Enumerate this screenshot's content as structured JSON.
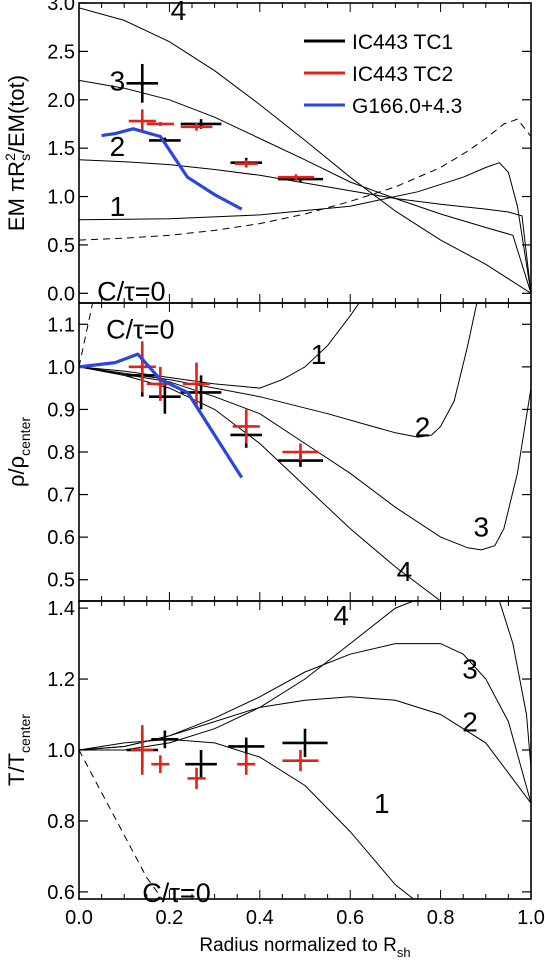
{
  "colors": {
    "IC443 TC1": "#000000",
    "IC443 TC2": "#e4201b",
    "G166.0+4.3": "#2747e0",
    "model": "#000000"
  },
  "xlabel": {
    "main": "Radius normalized to R",
    "sub": "sh"
  },
  "legend": [
    {
      "name": "IC443 TC1",
      "color": "#000000"
    },
    {
      "name": "IC443 TC2",
      "color": "#e4201b"
    },
    {
      "name": "G166.0+4.3",
      "color": "#2747e0"
    }
  ],
  "chart_data": [
    {
      "type": "line",
      "panel": "top",
      "ylabel": "EM πR_s^2/EM(tot)",
      "xlim": [
        0,
        1
      ],
      "ylim": [
        -0.1,
        3.0
      ],
      "xticks": [
        "0.0",
        "0.2",
        "0.4",
        "0.6",
        "0.8",
        "1.0"
      ],
      "yticks": [
        "0.0",
        "0.5",
        "1.0",
        "1.5",
        "2.0",
        "2.5",
        "3.0"
      ],
      "ctau_label": "C/τ=0",
      "curve_labels": [
        {
          "text": "4",
          "x": 0.22,
          "y": 2.93
        },
        {
          "text": "3",
          "x": 0.085,
          "y": 2.2
        },
        {
          "text": "2",
          "x": 0.085,
          "y": 1.52
        },
        {
          "text": "1",
          "x": 0.085,
          "y": 0.9
        }
      ],
      "model_curves": [
        {
          "label": "C/τ=0",
          "dashed": true,
          "x": [
            0,
            0.1,
            0.2,
            0.3,
            0.4,
            0.5,
            0.6,
            0.7,
            0.8,
            0.86,
            0.9,
            0.94,
            0.97,
            1.0
          ],
          "y": [
            0.55,
            0.57,
            0.6,
            0.65,
            0.72,
            0.82,
            0.95,
            1.1,
            1.3,
            1.47,
            1.6,
            1.75,
            1.8,
            1.62
          ]
        },
        {
          "label": "1",
          "dashed": false,
          "x": [
            0,
            0.2,
            0.4,
            0.6,
            0.75,
            0.85,
            0.9,
            0.93,
            0.95,
            0.97,
            0.99,
            1.0
          ],
          "y": [
            0.76,
            0.77,
            0.81,
            0.9,
            1.05,
            1.2,
            1.3,
            1.35,
            1.25,
            0.9,
            0.3,
            0.0
          ]
        },
        {
          "label": "2",
          "dashed": false,
          "x": [
            0,
            0.1,
            0.2,
            0.3,
            0.4,
            0.5,
            0.6,
            0.7,
            0.8,
            0.9,
            0.95,
            0.98,
            1.0
          ],
          "y": [
            1.38,
            1.36,
            1.33,
            1.28,
            1.22,
            1.14,
            1.06,
            0.98,
            0.92,
            0.87,
            0.84,
            0.8,
            0.0
          ]
        },
        {
          "label": "3",
          "dashed": false,
          "x": [
            0,
            0.1,
            0.2,
            0.3,
            0.4,
            0.5,
            0.6,
            0.7,
            0.8,
            0.9,
            0.96,
            1.0
          ],
          "y": [
            2.2,
            2.12,
            2.0,
            1.82,
            1.6,
            1.38,
            1.15,
            0.98,
            0.82,
            0.68,
            0.6,
            0.0
          ]
        },
        {
          "label": "4",
          "dashed": false,
          "x": [
            0,
            0.1,
            0.2,
            0.3,
            0.4,
            0.5,
            0.6,
            0.7,
            0.8,
            0.9,
            0.95,
            1.0
          ],
          "y": [
            2.95,
            2.82,
            2.6,
            2.3,
            1.95,
            1.58,
            1.2,
            0.85,
            0.55,
            0.3,
            0.15,
            0.0
          ]
        }
      ],
      "series": [
        {
          "name": "IC443 TC1",
          "x": [
            0.14,
            0.19,
            0.27,
            0.37,
            0.49
          ],
          "y": [
            2.17,
            1.58,
            1.75,
            1.35,
            1.18
          ],
          "xerr": [
            0.035,
            0.035,
            0.045,
            0.035,
            0.05
          ],
          "yerr": [
            0.2,
            0.03,
            0.05,
            0.05,
            0.03
          ]
        },
        {
          "name": "IC443 TC2",
          "x": [
            0.14,
            0.18,
            0.26,
            0.37,
            0.48
          ],
          "y": [
            1.78,
            1.75,
            1.72,
            1.34,
            1.2
          ],
          "xerr": [
            0.03,
            0.03,
            0.035,
            0.025,
            0.04
          ],
          "yerr": [
            0.12,
            0.02,
            0.04,
            0.04,
            0.03
          ]
        },
        {
          "name": "G166.0+4.3",
          "x": [
            0.05,
            0.08,
            0.12,
            0.18,
            0.24,
            0.3,
            0.36
          ],
          "y": [
            1.63,
            1.65,
            1.7,
            1.62,
            1.2,
            1.02,
            0.87
          ]
        }
      ]
    },
    {
      "type": "line",
      "panel": "middle",
      "ylabel": "ρ/ρ_center",
      "xlim": [
        0,
        1
      ],
      "ylim": [
        0.45,
        1.15
      ],
      "xticks": [],
      "yticks": [
        "0.5",
        "0.6",
        "0.7",
        "0.8",
        "0.9",
        "1.0",
        "1.1"
      ],
      "ctau_label": "C/τ=0",
      "curve_labels": [
        {
          "text": "1",
          "x": 0.53,
          "y": 1.03
        },
        {
          "text": "2",
          "x": 0.76,
          "y": 0.86
        },
        {
          "text": "3",
          "x": 0.89,
          "y": 0.625
        },
        {
          "text": "4",
          "x": 0.72,
          "y": 0.52
        }
      ],
      "model_curves": [
        {
          "label": "C/τ=0",
          "dashed": true,
          "x": [
            0,
            0.03
          ],
          "y": [
            1.0,
            1.15
          ]
        },
        {
          "label": "1",
          "dashed": false,
          "x": [
            0,
            0.1,
            0.2,
            0.3,
            0.4,
            0.45,
            0.5,
            0.55,
            0.6,
            0.62
          ],
          "y": [
            1.0,
            0.99,
            0.975,
            0.96,
            0.95,
            0.97,
            1.0,
            1.05,
            1.12,
            1.15
          ]
        },
        {
          "label": "2",
          "dashed": false,
          "x": [
            0,
            0.2,
            0.4,
            0.55,
            0.65,
            0.7,
            0.75,
            0.78,
            0.8,
            0.83,
            0.86,
            0.88
          ],
          "y": [
            1.0,
            0.97,
            0.93,
            0.89,
            0.86,
            0.845,
            0.835,
            0.84,
            0.86,
            0.92,
            1.05,
            1.15
          ]
        },
        {
          "label": "3",
          "dashed": false,
          "x": [
            0,
            0.2,
            0.3,
            0.4,
            0.5,
            0.6,
            0.7,
            0.8,
            0.86,
            0.89,
            0.92,
            0.94,
            0.97,
            1.0
          ],
          "y": [
            1.0,
            0.965,
            0.93,
            0.89,
            0.82,
            0.75,
            0.67,
            0.6,
            0.575,
            0.57,
            0.58,
            0.62,
            0.75,
            0.95
          ]
        },
        {
          "label": "4",
          "dashed": false,
          "x": [
            0,
            0.1,
            0.2,
            0.3,
            0.4,
            0.5,
            0.6,
            0.7,
            0.8
          ],
          "y": [
            1.0,
            0.98,
            0.95,
            0.9,
            0.82,
            0.72,
            0.62,
            0.53,
            0.45
          ]
        }
      ],
      "series": [
        {
          "name": "IC443 TC1",
          "x": [
            0.14,
            0.19,
            0.27,
            0.37,
            0.49
          ],
          "y": [
            0.98,
            0.93,
            0.94,
            0.84,
            0.78
          ],
          "xerr": [
            0.035,
            0.035,
            0.045,
            0.035,
            0.05
          ],
          "yerr": [
            0.05,
            0.04,
            0.04,
            0.03,
            0.015
          ]
        },
        {
          "name": "IC443 TC2",
          "x": [
            0.14,
            0.18,
            0.26,
            0.37,
            0.49
          ],
          "y": [
            1.0,
            0.96,
            0.96,
            0.86,
            0.8
          ],
          "xerr": [
            0.03,
            0.03,
            0.03,
            0.03,
            0.04
          ],
          "yerr": [
            0.06,
            0.04,
            0.05,
            0.04,
            0.02
          ]
        },
        {
          "name": "G166.0+4.3",
          "x": [
            0.0,
            0.08,
            0.13,
            0.18,
            0.24,
            0.3,
            0.36
          ],
          "y": [
            1.0,
            1.01,
            1.03,
            0.97,
            0.94,
            0.84,
            0.74
          ]
        }
      ]
    },
    {
      "type": "line",
      "panel": "bottom",
      "ylabel": "T/T_center",
      "xlim": [
        0,
        1
      ],
      "ylim": [
        0.58,
        1.42
      ],
      "xticks": [
        "0.0",
        "0.2",
        "0.4",
        "0.6",
        "0.8",
        "1.0"
      ],
      "yticks": [
        "0.6",
        "0.8",
        "1.0",
        "1.2",
        "1.4"
      ],
      "ctau_label": "C/τ=0",
      "curve_labels": [
        {
          "text": "4",
          "x": 0.58,
          "y": 1.38
        },
        {
          "text": "3",
          "x": 0.865,
          "y": 1.23
        },
        {
          "text": "2",
          "x": 0.865,
          "y": 1.08
        },
        {
          "text": "1",
          "x": 0.67,
          "y": 0.85
        }
      ],
      "model_curves": [
        {
          "label": "C/τ=0",
          "dashed": true,
          "x": [
            0,
            0.05,
            0.1,
            0.15,
            0.19
          ],
          "y": [
            1.0,
            0.88,
            0.76,
            0.64,
            0.57
          ]
        },
        {
          "label": "1",
          "dashed": false,
          "x": [
            0,
            0.1,
            0.2,
            0.3,
            0.4,
            0.5,
            0.6,
            0.7,
            0.75
          ],
          "y": [
            1.0,
            1.02,
            1.03,
            1.02,
            0.98,
            0.9,
            0.77,
            0.62,
            0.57
          ]
        },
        {
          "label": "2",
          "dashed": false,
          "x": [
            0,
            0.1,
            0.2,
            0.3,
            0.4,
            0.5,
            0.6,
            0.7,
            0.8,
            0.9,
            1.0
          ],
          "y": [
            1.0,
            1.01,
            1.04,
            1.08,
            1.12,
            1.14,
            1.15,
            1.14,
            1.1,
            1.02,
            0.85
          ]
        },
        {
          "label": "3",
          "dashed": false,
          "x": [
            0,
            0.1,
            0.2,
            0.3,
            0.4,
            0.5,
            0.6,
            0.7,
            0.8,
            0.85,
            0.9,
            0.95,
            1.0
          ],
          "y": [
            1.0,
            1.01,
            1.04,
            1.09,
            1.15,
            1.22,
            1.27,
            1.3,
            1.3,
            1.27,
            1.2,
            1.08,
            0.85
          ]
        },
        {
          "label": "4",
          "dashed": false,
          "x": [
            0,
            0.1,
            0.2,
            0.3,
            0.4,
            0.5,
            0.6,
            0.7,
            0.74
          ],
          "y": [
            1.0,
            1.0,
            1.02,
            1.06,
            1.12,
            1.2,
            1.3,
            1.4,
            1.42
          ]
        },
        {
          "label": "",
          "dashed": false,
          "x": [
            0.93,
            0.96,
            0.99,
            1.0
          ],
          "y": [
            1.42,
            1.3,
            1.1,
            0.95
          ]
        }
      ],
      "series": [
        {
          "name": "IC443 TC1",
          "x": [
            0.14,
            0.19,
            0.27,
            0.37,
            0.5
          ],
          "y": [
            1.0,
            1.03,
            0.96,
            1.01,
            1.02
          ],
          "xerr": [
            0.035,
            0.03,
            0.035,
            0.04,
            0.05
          ],
          "yerr": [
            0.05,
            0.025,
            0.04,
            0.025,
            0.04
          ]
        },
        {
          "name": "IC443 TC2",
          "x": [
            0.14,
            0.18,
            0.26,
            0.37,
            0.49
          ],
          "y": [
            1.0,
            0.96,
            0.92,
            0.96,
            0.97
          ],
          "xerr": [
            0.025,
            0.02,
            0.02,
            0.02,
            0.04
          ],
          "yerr": [
            0.07,
            0.025,
            0.03,
            0.03,
            0.03
          ]
        }
      ]
    }
  ]
}
